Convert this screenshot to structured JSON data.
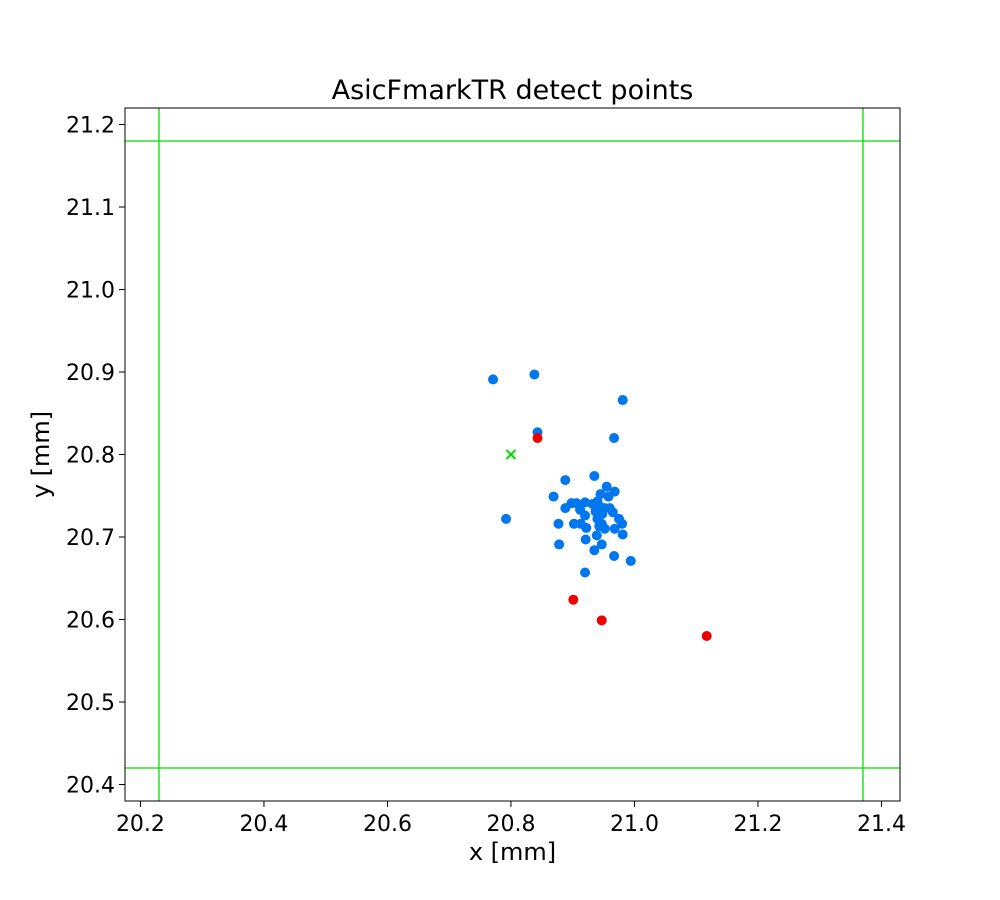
{
  "chart_data": {
    "type": "scatter",
    "title": "AsicFmarkTR detect points",
    "xlabel": "x [mm]",
    "ylabel": "y [mm]",
    "xlim": [
      20.175,
      21.43
    ],
    "ylim": [
      20.38,
      21.22
    ],
    "xticks": [
      "20.2",
      "20.4",
      "20.6",
      "20.8",
      "21.0",
      "21.2",
      "21.4"
    ],
    "yticks": [
      "20.4",
      "20.5",
      "20.6",
      "20.7",
      "20.8",
      "20.9",
      "21.0",
      "21.1",
      "21.2"
    ],
    "grid": false,
    "reference_lines": {
      "color": "#00dd00",
      "vertical_x": [
        20.23,
        21.37
      ],
      "horizontal_y": [
        20.42,
        21.18
      ]
    },
    "target_marker": {
      "x": 20.8,
      "y": 20.8,
      "color": "#00dd00",
      "shape": "x"
    },
    "series": [
      {
        "color": "#0077ee",
        "points": [
          [
            20.771,
            20.891
          ],
          [
            20.838,
            20.897
          ],
          [
            20.981,
            20.866
          ],
          [
            20.843,
            20.827
          ],
          [
            20.967,
            20.82
          ],
          [
            20.792,
            20.722
          ],
          [
            20.888,
            20.769
          ],
          [
            20.935,
            20.774
          ],
          [
            20.869,
            20.749
          ],
          [
            20.955,
            20.761
          ],
          [
            20.968,
            20.755
          ],
          [
            20.945,
            20.752
          ],
          [
            20.958,
            20.749
          ],
          [
            20.888,
            20.735
          ],
          [
            20.898,
            20.741
          ],
          [
            20.906,
            20.741
          ],
          [
            20.912,
            20.733
          ],
          [
            20.92,
            20.742
          ],
          [
            20.932,
            20.74
          ],
          [
            20.94,
            20.743
          ],
          [
            20.944,
            20.737
          ],
          [
            20.952,
            20.735
          ],
          [
            20.96,
            20.735
          ],
          [
            20.937,
            20.731
          ],
          [
            20.948,
            20.728
          ],
          [
            20.965,
            20.73
          ],
          [
            20.975,
            20.722
          ],
          [
            20.92,
            20.726
          ],
          [
            20.94,
            20.722
          ],
          [
            20.947,
            20.716
          ],
          [
            20.98,
            20.716
          ],
          [
            20.877,
            20.716
          ],
          [
            20.902,
            20.716
          ],
          [
            20.913,
            20.716
          ],
          [
            20.922,
            20.711
          ],
          [
            20.943,
            20.713
          ],
          [
            20.952,
            20.71
          ],
          [
            20.968,
            20.71
          ],
          [
            20.981,
            20.703
          ],
          [
            20.939,
            20.702
          ],
          [
            20.921,
            20.697
          ],
          [
            20.878,
            20.691
          ],
          [
            20.947,
            20.691
          ],
          [
            20.935,
            20.684
          ],
          [
            20.967,
            20.677
          ],
          [
            20.994,
            20.671
          ],
          [
            20.92,
            20.657
          ]
        ]
      },
      {
        "color": "#ee0000",
        "points": [
          [
            20.843,
            20.82
          ],
          [
            20.901,
            20.624
          ],
          [
            20.947,
            20.599
          ],
          [
            21.117,
            20.58
          ]
        ]
      }
    ]
  }
}
